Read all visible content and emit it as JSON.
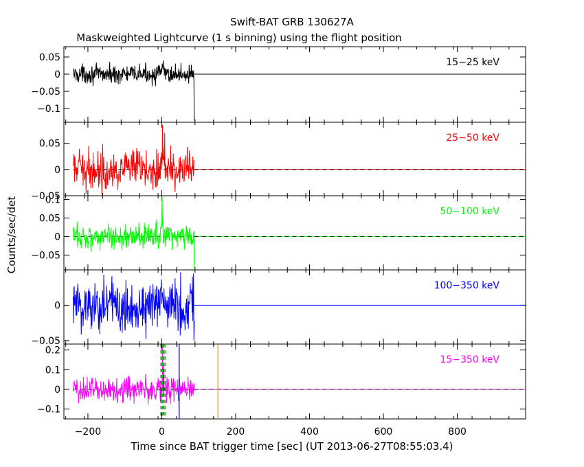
{
  "title": "Swift-BAT GRB 130627A",
  "subtitle": "Maskweighted Lightcurve (1 s binning) using the flight position",
  "chart_data": {
    "type": "line",
    "xlabel": "Time since BAT trigger time [sec] (UT 2013-06-27T08:55:03.4)",
    "ylabel": "Counts/sec/det",
    "xlim": [
      -265,
      985
    ],
    "x_ticks": [
      -200,
      0,
      200,
      400,
      600,
      800
    ],
    "x_tick_labels": [
      "−200",
      "0",
      "200",
      "400",
      "600",
      "800"
    ],
    "data_range_sec": [
      -240,
      88
    ],
    "panels": [
      {
        "band": "15−25 keV",
        "color": "#000000",
        "ylim": [
          -0.14,
          0.08
        ],
        "y_ticks": [
          -0.1,
          -0.05,
          0,
          0.05
        ],
        "y_tick_labels": [
          "−0.1",
          "−0.05",
          "0",
          "0.05"
        ],
        "noise_sigma": 0.013,
        "features": [
          {
            "t": 88,
            "value": -0.135
          }
        ],
        "zero_line_dashed": false
      },
      {
        "band": "25−50 keV",
        "color": "#ff0000",
        "ylim": [
          -0.05,
          0.09
        ],
        "y_ticks": [
          -0.05,
          0,
          0.05
        ],
        "y_tick_labels": [
          "−0.05",
          "0",
          "0.05"
        ],
        "noise_sigma": 0.018,
        "features": [
          {
            "t": 2,
            "value": 0.085
          },
          {
            "t": 8,
            "value": 0.07
          }
        ],
        "zero_line_dashed": true
      },
      {
        "band": "50−100 keV",
        "color": "#00ff00",
        "ylim": [
          -0.09,
          0.11
        ],
        "y_ticks": [
          -0.05,
          0,
          0.05,
          0.1
        ],
        "y_tick_labels": [
          "−0.05",
          "0",
          "0.05",
          "0.1"
        ],
        "noise_sigma": 0.017,
        "features": [
          {
            "t": 1,
            "value": 0.11
          },
          {
            "t": 88,
            "value": -0.085
          }
        ],
        "zero_line_dashed": true
      },
      {
        "band": "100−350 keV",
        "color": "#0000ff",
        "ylim": [
          -0.055,
          0.05
        ],
        "y_ticks": [
          -0.05,
          0
        ],
        "y_tick_labels": [
          "−0.05",
          "0"
        ],
        "noise_sigma": 0.02,
        "features": [
          {
            "t": 86,
            "value": 0.045
          },
          {
            "t": 87,
            "value": -0.05
          }
        ],
        "zero_line_dashed": false
      },
      {
        "band": "15−350 keV",
        "color": "#ff00ff",
        "ylim": [
          -0.15,
          0.23
        ],
        "y_ticks": [
          -0.1,
          0,
          0.1,
          0.2
        ],
        "y_tick_labels": [
          "−0.1",
          "0",
          "0.1",
          "0.2"
        ],
        "noise_sigma": 0.033,
        "features": [
          {
            "t": 2,
            "value": 0.22
          },
          {
            "t": 5,
            "value": 0.12
          }
        ],
        "zero_line_dashed": true
      }
    ],
    "markers": [
      {
        "t": -2,
        "color": "#000000",
        "style": "dashed"
      },
      {
        "t": 2,
        "color": "#00cc00",
        "style": "dashed"
      },
      {
        "t": 6,
        "color": "#000000",
        "style": "dashed"
      },
      {
        "t": 10,
        "color": "#00cc00",
        "style": "dashed"
      },
      {
        "t": 47,
        "color": "#0000ff",
        "style": "solid"
      },
      {
        "t": 152,
        "color": "#ff9900",
        "style": "solid"
      }
    ],
    "grid": false,
    "legend": "band labels inside each panel, top-right"
  }
}
